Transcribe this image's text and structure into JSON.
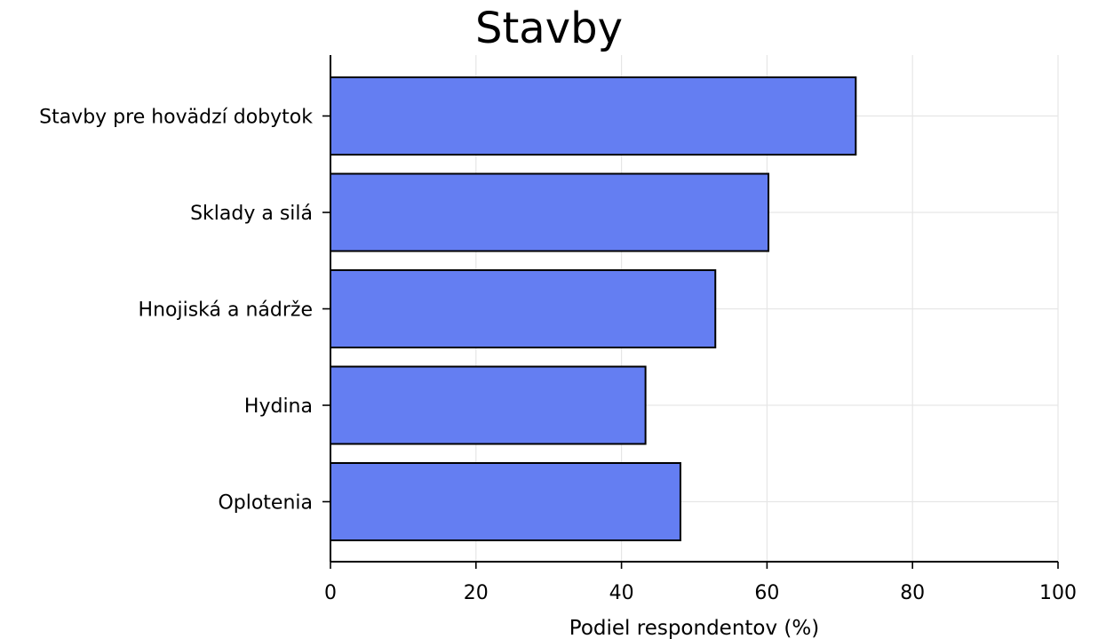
{
  "chart_data": {
    "type": "bar",
    "orientation": "horizontal",
    "title": "Stavby",
    "xlabel": "Podiel respondentov (%)",
    "ylabel": "",
    "categories": [
      "Stavby pre hovädzí dobytok",
      "Sklady a silá",
      "Hnojiská a nádrže",
      "Hydina",
      "Oplotenia"
    ],
    "values": [
      72.2,
      60.2,
      52.9,
      43.3,
      48.1
    ],
    "xlim": [
      0,
      100
    ],
    "xticks": [
      "0",
      "20",
      "40",
      "60",
      "80",
      "100"
    ],
    "grid": true,
    "legend": "none",
    "colors": {
      "bar": "#647ef2",
      "edge": "#000000",
      "grid": "#e6e6e6"
    }
  }
}
